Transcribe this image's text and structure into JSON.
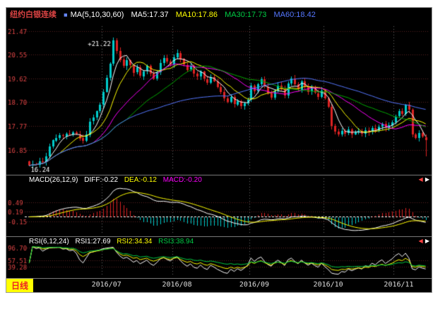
{
  "header": {
    "symbol": "纽约白银连续",
    "symbol_color": "#dd4444",
    "indicator_icon": "■",
    "indicator_icon_color": "#6688ff",
    "ma_indicator_label": "MA(5,10,30,60)",
    "ma_label_color": "#ffffff",
    "ma_values": [
      {
        "text": "MA5:17.37",
        "color": "#ffffff"
      },
      {
        "text": "MA10:17.86",
        "color": "#ffff00"
      },
      {
        "text": "MA30:17.73",
        "color": "#00cc44"
      },
      {
        "text": "MA60:18.42",
        "color": "#5577ff"
      }
    ]
  },
  "macd_header": {
    "label": "MACD(26,12,9)",
    "label_color": "#ffffff",
    "values": [
      {
        "text": "DIFF:-0.22",
        "color": "#ffffff"
      },
      {
        "text": "DEA:-0.12",
        "color": "#ffff00"
      },
      {
        "text": "MACD:-0.20",
        "color": "#ff00ff"
      }
    ]
  },
  "rsi_header": {
    "label": "RSI(6,12,24)",
    "label_color": "#ffffff",
    "values": [
      {
        "text": "RSI1:27.69",
        "color": "#ffffff"
      },
      {
        "text": "RSI2:34.34",
        "color": "#ffff00"
      },
      {
        "text": "RSI3:38.94",
        "color": "#00cc44"
      }
    ]
  },
  "footer": {
    "period_label": "日线",
    "period_color": "#ee2222",
    "period_bg": "#ffff00"
  },
  "icons": {
    "left": "◀",
    "left_color": "#ff4040",
    "right": "▶",
    "right_color": "#ffffff"
  },
  "chart_data": {
    "type": "candlestick",
    "title": "纽约白银连续",
    "timeframe": "日线",
    "x_month_labels": [
      "2016/07",
      "2016/08",
      "2016/09",
      "2016/10",
      "2016/11"
    ],
    "month_start_indices": [
      22,
      43,
      66,
      88,
      109
    ],
    "first_open": 16.4,
    "closes": [
      16.24,
      16.3,
      16.28,
      16.42,
      16.38,
      16.6,
      16.98,
      17.22,
      17.32,
      17.42,
      17.38,
      17.48,
      17.44,
      17.52,
      17.46,
      17.3,
      17.2,
      17.44,
      17.95,
      18.1,
      18.35,
      18.6,
      19.1,
      19.65,
      20.2,
      21.1,
      20.7,
      20.35,
      20.1,
      20.32,
      20.12,
      19.85,
      20.05,
      19.72,
      19.9,
      20.1,
      19.8,
      19.62,
      19.85,
      20.22,
      20.42,
      20.28,
      20.18,
      20.45,
      20.62,
      20.38,
      20.15,
      19.95,
      20.1,
      19.8,
      19.7,
      19.88,
      19.6,
      19.45,
      19.68,
      19.52,
      19.3,
      19.1,
      18.85,
      18.72,
      18.9,
      18.62,
      18.75,
      18.55,
      18.65,
      18.8,
      19.35,
      19.12,
      19.4,
      19.58,
      19.3,
      19.05,
      18.88,
      19.15,
      19.35,
      19.2,
      18.95,
      19.42,
      19.62,
      19.4,
      19.2,
      19.52,
      19.3,
      19.1,
      19.25,
      19.05,
      18.9,
      19.15,
      18.85,
      18.52,
      17.78,
      17.55,
      17.45,
      17.6,
      17.5,
      17.65,
      17.45,
      17.52,
      17.58,
      17.48,
      17.62,
      17.55,
      17.7,
      17.62,
      17.75,
      17.85,
      17.7,
      17.8,
      17.92,
      18.15,
      18.35,
      18.25,
      18.6,
      18.4,
      17.45,
      17.3,
      17.5,
      17.35,
      17.25
    ],
    "wick_overrides": {
      "0": {
        "low": 16.24
      },
      "25": {
        "high": 21.22
      },
      "118": {
        "low": 16.62
      }
    },
    "price_y_ticks": [
      "21.47",
      "20.55",
      "19.62",
      "18.70",
      "17.77",
      "16.85"
    ],
    "price_range": [
      16.05,
      21.65
    ],
    "high_annotation": {
      "index": 25,
      "value": 21.22,
      "text": "+21.22"
    },
    "low_annotation": {
      "index": 0,
      "value": 16.24,
      "text": "16.24"
    },
    "up_color": "#00cccc",
    "down_color": "#dd2222",
    "grid_color_h": "#5a2020",
    "grid_color_v": "#6a6a6a",
    "axis_label_color": "#e04545",
    "ma_lines": [
      {
        "label": "MA5",
        "period": 5,
        "color": "#ffffff"
      },
      {
        "label": "MA10",
        "period": 10,
        "color": "#ffff00"
      },
      {
        "label": "",
        "period": 20,
        "color": "#ff00ff"
      },
      {
        "label": "MA30",
        "period": 30,
        "color": "#00aa00"
      },
      {
        "label": "MA60",
        "period": 60,
        "color": "#5577ff"
      }
    ],
    "macd": {
      "params": [
        26,
        12,
        9
      ],
      "y_ticks": [
        "0.49",
        "0.19",
        "-0.15"
      ],
      "diff_color": "#ffffff",
      "dea_color": "#ffff00",
      "pos_color": "#dd2222",
      "neg_color": "#00cccc",
      "zero_line_color": "#ffffff"
    },
    "rsi": {
      "params": [
        6,
        12,
        24
      ],
      "y_ticks": [
        "96.70",
        "57.51",
        "39.28"
      ],
      "colors": [
        "#ffffff",
        "#ffff00",
        "#00cc44"
      ]
    }
  }
}
